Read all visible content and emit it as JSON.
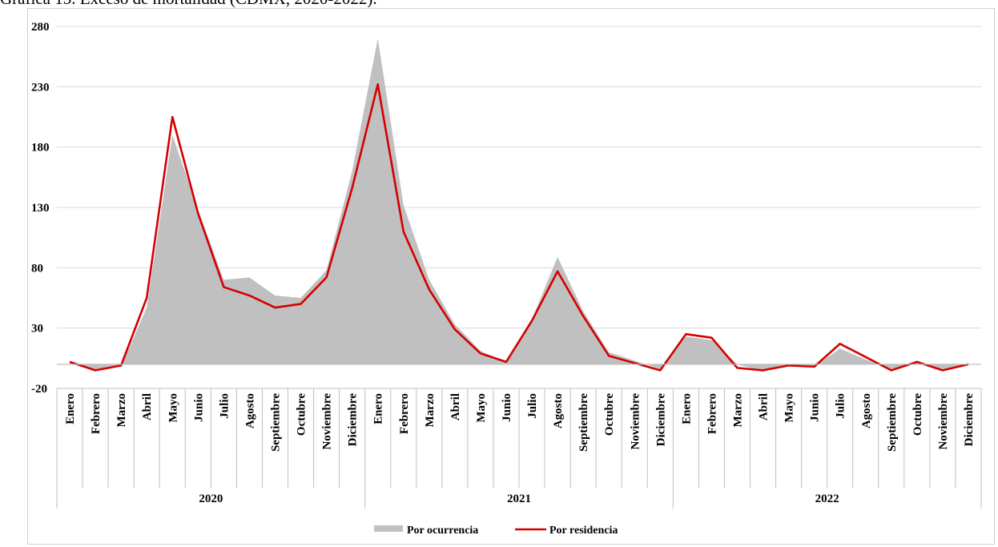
{
  "caption": "Gráfica 15. Exceso de mortalidad (CDMX, 2020-2022).",
  "colors": {
    "area": "#c0c0c0",
    "line": "#d40000",
    "grid": "#d9d9d9",
    "axis": "#bfbfbf"
  },
  "chart_data": {
    "type": "area",
    "title": "Gráfica 15. Exceso de mortalidad (CDMX, 2020-2022).",
    "xlabel": "",
    "ylabel": "",
    "ylim": [
      -20,
      280
    ],
    "yticks": [
      -20,
      30,
      80,
      130,
      180,
      230,
      280
    ],
    "grid": true,
    "legend_position": "bottom",
    "groups": [
      {
        "label": "2020",
        "months": [
          "Enero",
          "Febrero",
          "Marzo",
          "Abril",
          "Mayo",
          "Junio",
          "Julio",
          "Agosto",
          "Septiembre",
          "Octubre",
          "Noviembre",
          "Diciembre"
        ]
      },
      {
        "label": "2021",
        "months": [
          "Enero",
          "Febrero",
          "Marzo",
          "Abril",
          "Mayo",
          "Junio",
          "Julio",
          "Agosto",
          "Septiembre",
          "Octubre",
          "Noviembre",
          "Diciembre"
        ]
      },
      {
        "label": "2022",
        "months": [
          "Enero",
          "Febrero",
          "Marzo",
          "Abril",
          "Mayo",
          "Junio",
          "Julio",
          "Agosto",
          "Septiembre",
          "Octubre",
          "Noviembre",
          "Diciembre"
        ]
      }
    ],
    "series": [
      {
        "name": "Por ocurrencia",
        "type": "area",
        "values": [
          2,
          -4,
          -2,
          47,
          190,
          128,
          70,
          72,
          57,
          55,
          78,
          160,
          270,
          132,
          70,
          33,
          11,
          2,
          37,
          89,
          44,
          10,
          3,
          -4,
          23,
          20,
          0,
          -6,
          -1,
          -2,
          13,
          4,
          -4,
          1,
          -4,
          0
        ]
      },
      {
        "name": "Por residencia",
        "type": "line",
        "values": [
          2,
          -5,
          -1,
          55,
          205,
          125,
          64,
          57,
          47,
          50,
          72,
          146,
          232,
          110,
          62,
          29,
          9,
          2,
          36,
          77,
          40,
          7,
          1,
          -5,
          25,
          22,
          -3,
          -5,
          -1,
          -2,
          17,
          6,
          -5,
          2,
          -5,
          0
        ]
      }
    ]
  }
}
